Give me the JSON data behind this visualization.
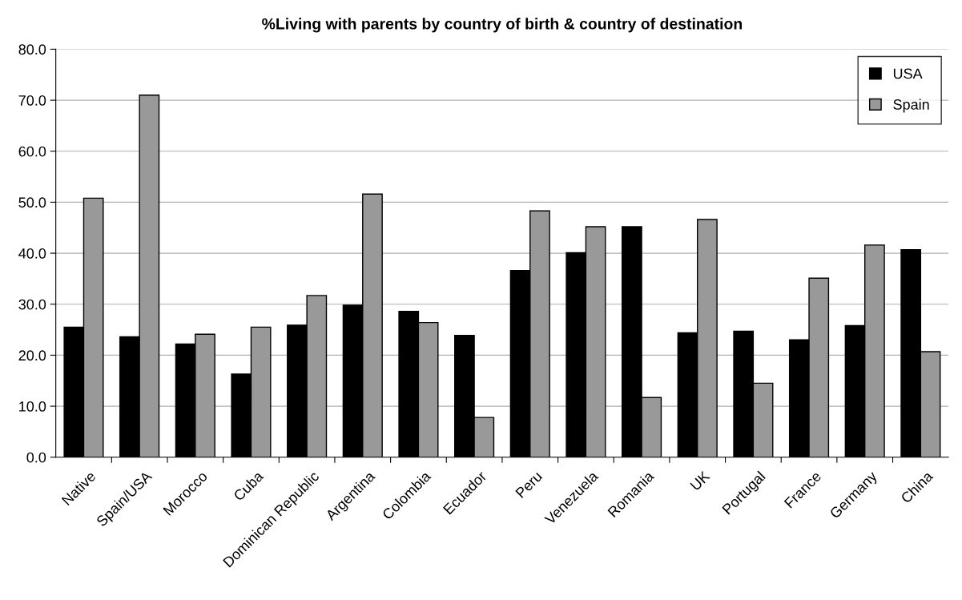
{
  "chart_data": {
    "type": "bar",
    "title": "%Living with parents by country of birth & country of destination",
    "categories": [
      "Native",
      "Spain/USA",
      "Morocco",
      "Cuba",
      "Dominican Republic",
      "Argentina",
      "Colombia",
      "Ecuador",
      "Peru",
      "Venezuela",
      "Romania",
      "UK",
      "Portugal",
      "France",
      "Germany",
      "China"
    ],
    "series": [
      {
        "name": "USA",
        "color": "#000000",
        "values": [
          25.5,
          23.6,
          22.2,
          16.3,
          25.9,
          29.8,
          28.6,
          23.9,
          36.6,
          40.1,
          45.2,
          24.4,
          24.7,
          23.0,
          25.8,
          40.7
        ]
      },
      {
        "name": "Spain",
        "color": "#999999",
        "values": [
          50.8,
          71.0,
          24.1,
          25.5,
          31.7,
          51.6,
          26.4,
          7.8,
          48.3,
          45.2,
          11.7,
          46.6,
          14.5,
          35.1,
          41.6,
          20.7
        ]
      }
    ],
    "ylim": [
      0,
      80
    ],
    "yticks": [
      {
        "value": 0,
        "label": "0.0"
      },
      {
        "value": 10,
        "label": "10.0"
      },
      {
        "value": 20,
        "label": "20.0"
      },
      {
        "value": 30,
        "label": "30.0"
      },
      {
        "value": 40,
        "label": "40.0"
      },
      {
        "value": 50,
        "label": "50.0"
      },
      {
        "value": 60,
        "label": "60.0"
      },
      {
        "value": 70,
        "label": "70.0"
      },
      {
        "value": 80,
        "label": "80.0"
      }
    ],
    "grid": "y",
    "legend": "top right"
  }
}
